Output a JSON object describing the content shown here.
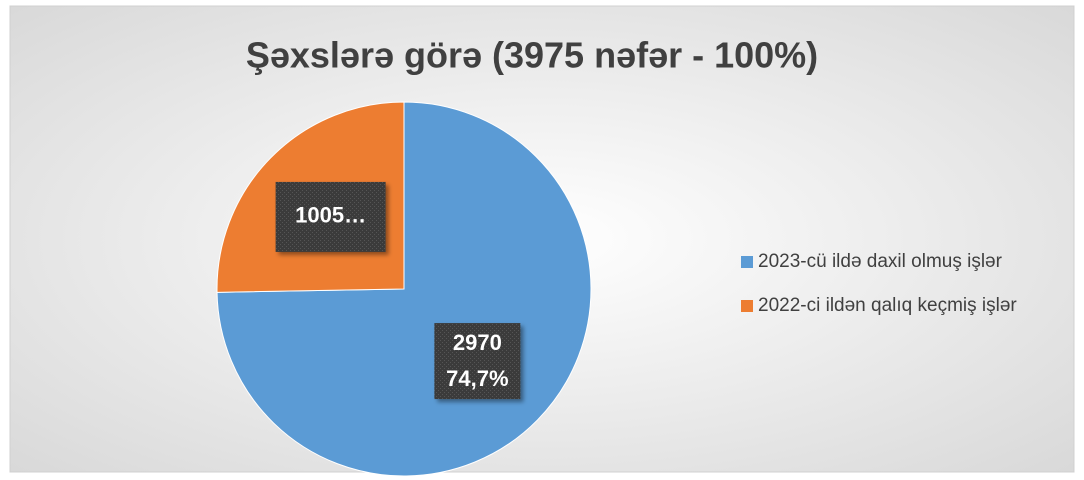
{
  "chart_data": {
    "type": "pie",
    "title": "Şəxslərə görə (3975 nəfər - 100%)",
    "categories": [
      "2023-cü ildə daxil olmuş işlər",
      "2022-ci ildən qalıq keçmiş işlər"
    ],
    "values": [
      2970,
      1005
    ],
    "value_labels": [
      "2970",
      "1005…"
    ],
    "percent_labels": [
      "74,7%",
      null
    ],
    "colors": [
      "#5b9bd5",
      "#ed7d31"
    ],
    "legend": "right"
  }
}
